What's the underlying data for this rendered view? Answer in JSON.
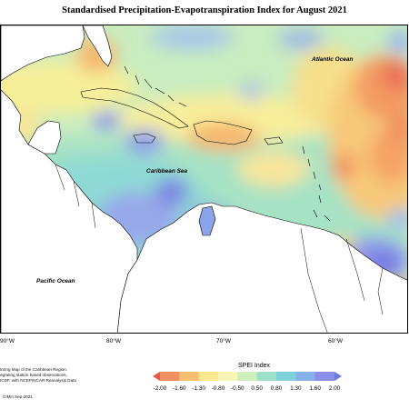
{
  "title": "Standardised Precipitation-Evapotranspiration Index for August 2021",
  "ocean_labels": {
    "atlantic": "Atlantic Ocean",
    "caribbean": "Caribbean Sea",
    "pacific": "Pacific Ocean"
  },
  "longitude_ticks": [
    "90°W",
    "80°W",
    "70°W",
    "60°W"
  ],
  "credits": [
    "toring Map of the Caribbean Region.",
    "egrating station based observations,",
    "ICDF, with NCEP/NCAR Reanalysis Data"
  ],
  "copyright": "CIMH Sep-2021",
  "legend": {
    "title": "SPEI Index",
    "ticks": [
      "-2.00",
      "-1.60",
      "-1.30",
      "-0.80",
      "-0.50",
      "0.50",
      "0.80",
      "1.30",
      "1.60",
      "2.00"
    ],
    "colors": [
      "#e8574f",
      "#f3905f",
      "#f7bf6f",
      "#fae88e",
      "#f8f4b6",
      "#cfeebe",
      "#9fe0ca",
      "#7ed2dc",
      "#85b0ea",
      "#8a8dea",
      "#6c7ae0"
    ]
  },
  "colors": {
    "land": "#ffffff",
    "coast": "#000000"
  }
}
